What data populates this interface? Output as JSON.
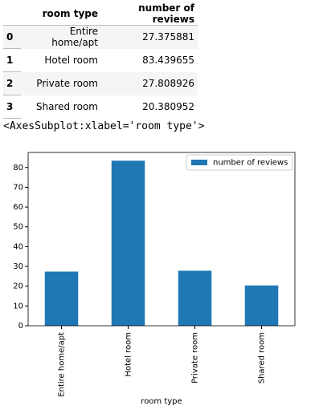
{
  "table": {
    "columns": [
      "room type",
      "number of reviews"
    ],
    "index": [
      "0",
      "1",
      "2",
      "3"
    ],
    "rows": [
      [
        "Entire home/apt",
        "27.375881"
      ],
      [
        "Hotel room",
        "83.439655"
      ],
      [
        "Private room",
        "27.808926"
      ],
      [
        "Shared room",
        "20.380952"
      ]
    ]
  },
  "output_text": "<AxesSubplot:xlabel='room type'>",
  "chart_data": {
    "type": "bar",
    "xlabel": "room type",
    "categories": [
      "Entire home/apt",
      "Hotel room",
      "Private room",
      "Shared room"
    ],
    "series": [
      {
        "name": "number of reviews",
        "color": "#1f77b4",
        "values": [
          27.375881,
          83.439655,
          27.808926,
          20.380952
        ]
      }
    ],
    "ylim": [
      0,
      87.61
    ],
    "yticks": [
      0,
      10,
      20,
      30,
      40,
      50,
      60,
      70,
      80
    ],
    "legend": "upper right"
  }
}
